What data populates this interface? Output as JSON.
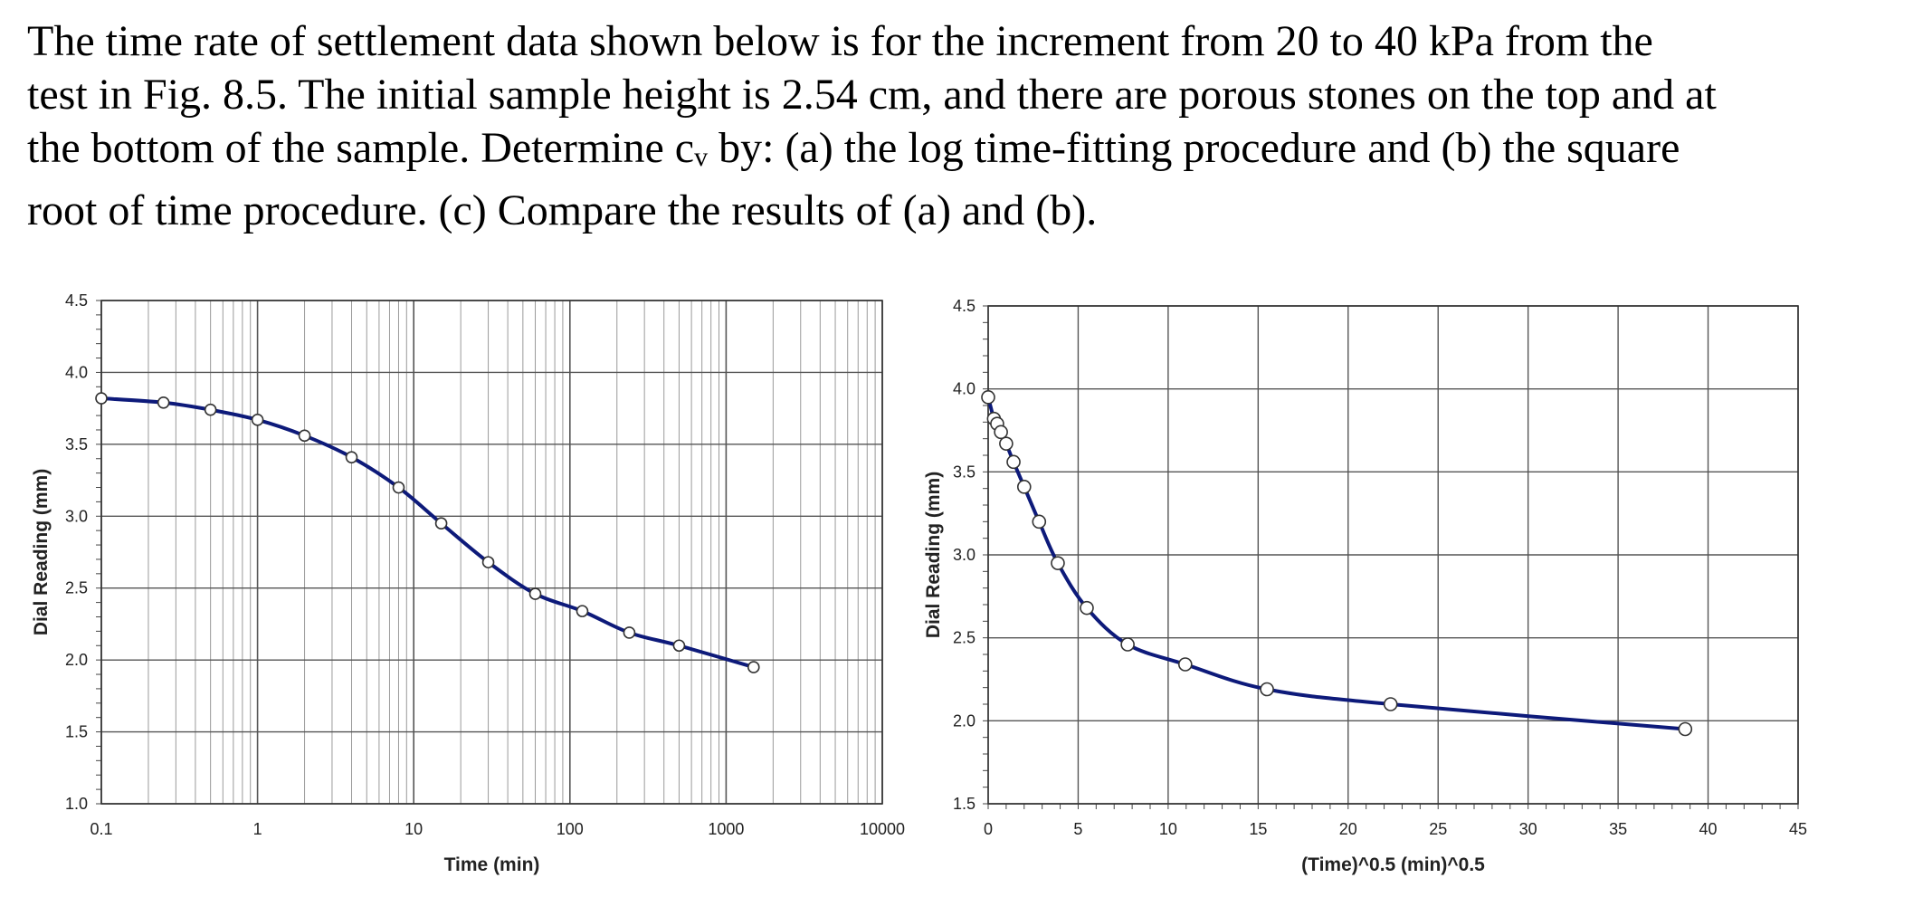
{
  "problem": {
    "lines": [
      "The time rate of settlement data shown below is for the increment from 20 to 40 kPa from the",
      "test in Fig. 8.5. The initial sample height is 2.54 cm, and there are porous stones on the top and at",
      "the bottom of the sample. Determine c",
      "v",
      " by: (a) the log time-fitting procedure and (b) the square",
      "root of time procedure. (c) Compare the results of (a) and (b)."
    ]
  },
  "colors": {
    "curve": "#0d1a7a",
    "major_grid": "#555555",
    "minor_grid": "#9a9a9a",
    "marker_fill": "#ffffff",
    "marker_edge": "#333333"
  },
  "chart_data": [
    {
      "type": "scatter",
      "xlabel": "Time (min)",
      "ylabel": "Dial Reading (mm)",
      "x_scale": "log",
      "xlim": [
        0.1,
        10000
      ],
      "ylim": [
        1.0,
        4.5
      ],
      "x_ticks": [
        "0.1",
        "1",
        "10",
        "100",
        "1000",
        "10000"
      ],
      "y_ticks": [
        "1.0",
        "1.5",
        "2.0",
        "2.5",
        "3.0",
        "3.5",
        "4.0",
        "4.5"
      ],
      "grid": true,
      "series": [
        {
          "x": [
            0.1,
            0.25,
            0.5,
            1,
            2,
            4,
            8,
            15,
            30,
            60,
            120,
            240,
            500,
            1500
          ],
          "y": [
            3.82,
            3.79,
            3.74,
            3.67,
            3.56,
            3.41,
            3.2,
            2.95,
            2.68,
            2.46,
            2.34,
            2.19,
            2.1,
            1.95
          ]
        }
      ]
    },
    {
      "type": "scatter",
      "xlabel": "(Time)^0.5  (min)^0.5",
      "ylabel": "Dial Reading (mm)",
      "xlim": [
        0,
        45
      ],
      "ylim": [
        1.5,
        4.5
      ],
      "x_ticks": [
        "0",
        "5",
        "10",
        "15",
        "20",
        "25",
        "30",
        "35",
        "40",
        "45"
      ],
      "y_ticks": [
        "1.5",
        "2.0",
        "2.5",
        "3.0",
        "3.5",
        "4.0",
        "4.5"
      ],
      "grid": true,
      "series": [
        {
          "x": [
            0,
            0.32,
            0.5,
            0.71,
            1.0,
            1.41,
            2.0,
            2.83,
            3.87,
            5.48,
            7.75,
            10.95,
            15.49,
            22.36,
            38.73
          ],
          "y": [
            3.95,
            3.82,
            3.79,
            3.74,
            3.67,
            3.56,
            3.41,
            3.2,
            2.95,
            2.68,
            2.46,
            2.34,
            2.19,
            2.1,
            1.95
          ]
        }
      ]
    }
  ]
}
